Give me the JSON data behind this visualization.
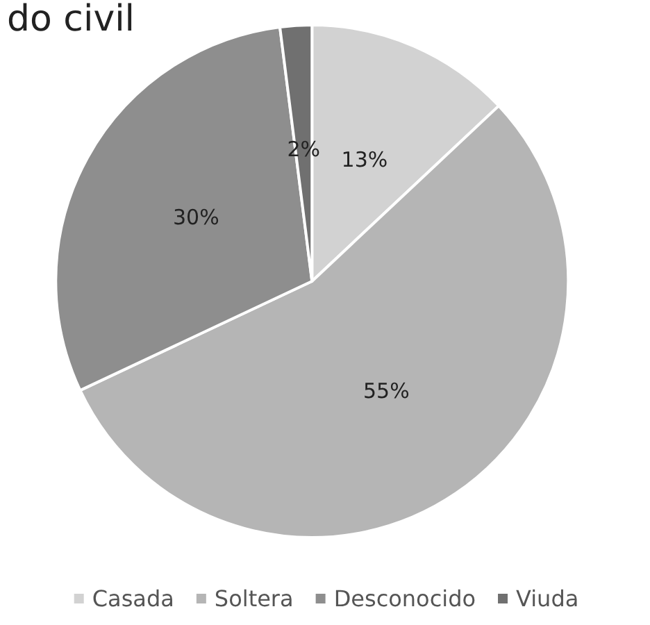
{
  "chart_data": {
    "type": "pie",
    "title": "do civil",
    "categories": [
      "Casada",
      "Soltera",
      "Desconocido",
      "Viuda"
    ],
    "values": [
      13,
      55,
      30,
      2
    ],
    "colors": [
      "#d2d2d2",
      "#b5b5b5",
      "#8e8e8e",
      "#707070"
    ],
    "value_labels": [
      "13%",
      "55%",
      "30%",
      "2%"
    ],
    "legend": "bottom"
  }
}
